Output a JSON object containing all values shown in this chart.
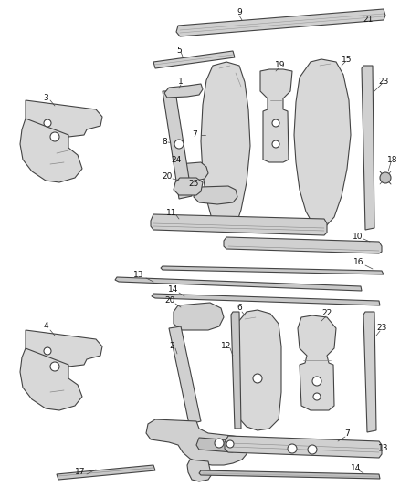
{
  "bg_color": "#ffffff",
  "line_color": "#444444",
  "fill_color": "#e8e8e8",
  "figsize": [
    4.38,
    5.33
  ],
  "dpi": 100,
  "label_fontsize": 6.5
}
